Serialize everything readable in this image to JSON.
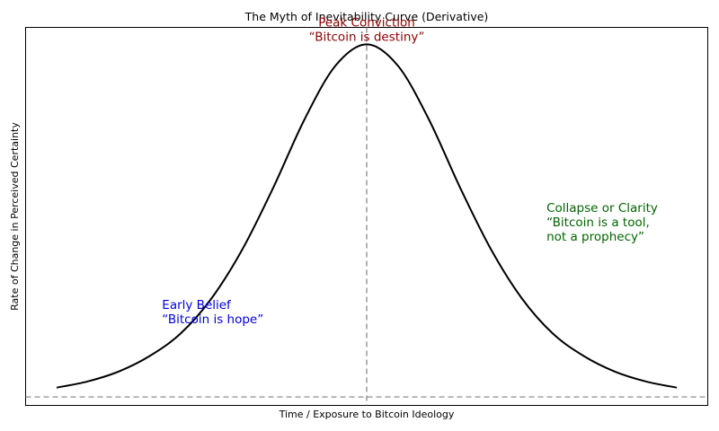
{
  "chart_data": {
    "type": "line",
    "title": "The Myth of Inevitability Curve (Derivative)",
    "xlabel": "Time / Exposure to Bitcoin Ideology",
    "ylabel": "Rate of Change in Perceived Certainty",
    "series": [
      {
        "color": "#000000",
        "x": [
          -5,
          -4.5,
          -4,
          -3.5,
          -3,
          -2.5,
          -2,
          -1.5,
          -1,
          -0.5,
          0,
          0.5,
          1,
          1.5,
          2,
          2.5,
          3,
          3.5,
          4,
          4.5,
          5
        ],
        "values": [
          0.0066,
          0.011,
          0.018,
          0.029,
          0.045,
          0.07,
          0.105,
          0.149,
          0.197,
          0.235,
          0.25,
          0.235,
          0.197,
          0.149,
          0.105,
          0.07,
          0.045,
          0.029,
          0.018,
          0.011,
          0.0066
        ]
      }
    ],
    "xlim": [
      -5.5,
      5.5
    ],
    "ylim": [
      -0.006,
      0.262
    ],
    "reference_lines": {
      "vertical_x": 0,
      "horizontal_y": 0,
      "style": "dashed",
      "color": "#808080"
    },
    "annotations": [
      {
        "lines": [
          "Peak Conviction",
          "“Bitcoin is destiny”"
        ],
        "x": 0,
        "y": 0.25,
        "color": "#8b0000",
        "anchor": "middle"
      },
      {
        "lines": [
          "Early Belief",
          "“Bitcoin is hope”"
        ],
        "x": -3.3,
        "y": 0.03,
        "color": "#0000dd",
        "anchor": "start"
      },
      {
        "lines": [
          "Collapse or Clarity",
          "“Bitcoin is a tool,",
          "not a prophecy”"
        ],
        "x": 2.9,
        "y": 0.07,
        "color": "#006400",
        "anchor": "start"
      }
    ],
    "grid": false,
    "x_ticks_visible": false,
    "y_ticks_visible": false
  }
}
